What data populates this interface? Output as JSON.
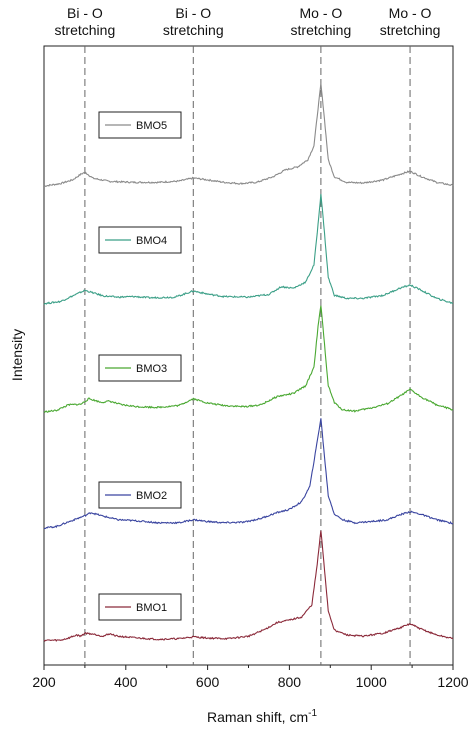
{
  "chart_data": {
    "type": "line",
    "xlabel": "Raman shift, cm",
    "xlabel_superscript": "-1",
    "ylabel": "Intensity",
    "xlim": [
      200,
      1200
    ],
    "xticks": [
      "200",
      "400",
      "600",
      "800",
      "1000",
      "1200"
    ],
    "annotations": [
      {
        "line1": "Bi - O",
        "line2": "stretching",
        "x": 300
      },
      {
        "line1": "Bi - O",
        "line2": "stretching",
        "x": 565
      },
      {
        "line1": "Mo - O",
        "line2": "stretching",
        "x": 877
      },
      {
        "line1": "Mo - O",
        "line2": "stretching",
        "x": 1095
      }
    ],
    "reference_lines_x": [
      300,
      565,
      877,
      1095
    ],
    "series": [
      {
        "name": "BMO5",
        "color": "#8a8a8a",
        "baseline": 0.85,
        "scale": 0.095,
        "points": [
          [
            200,
            0.1
          ],
          [
            240,
            0.18
          ],
          [
            270,
            0.3
          ],
          [
            290,
            0.48
          ],
          [
            300,
            0.55
          ],
          [
            320,
            0.35
          ],
          [
            360,
            0.25
          ],
          [
            420,
            0.22
          ],
          [
            480,
            0.22
          ],
          [
            530,
            0.26
          ],
          [
            565,
            0.36
          ],
          [
            600,
            0.3
          ],
          [
            640,
            0.22
          ],
          [
            680,
            0.18
          ],
          [
            720,
            0.22
          ],
          [
            760,
            0.4
          ],
          [
            790,
            0.62
          ],
          [
            820,
            0.72
          ],
          [
            845,
            0.95
          ],
          [
            860,
            1.4
          ],
          [
            870,
            2.6
          ],
          [
            877,
            3.4
          ],
          [
            884,
            2.5
          ],
          [
            895,
            0.95
          ],
          [
            910,
            0.4
          ],
          [
            940,
            0.22
          ],
          [
            980,
            0.2
          ],
          [
            1030,
            0.3
          ],
          [
            1070,
            0.48
          ],
          [
            1095,
            0.58
          ],
          [
            1120,
            0.42
          ],
          [
            1160,
            0.22
          ],
          [
            1200,
            0.12
          ]
        ]
      },
      {
        "name": "BMO4",
        "color": "#3b9f87",
        "baseline": 2.35,
        "scale": 0.095,
        "points": [
          [
            200,
            0.05
          ],
          [
            240,
            0.12
          ],
          [
            270,
            0.3
          ],
          [
            290,
            0.42
          ],
          [
            300,
            0.48
          ],
          [
            320,
            0.4
          ],
          [
            345,
            0.3
          ],
          [
            380,
            0.26
          ],
          [
            420,
            0.28
          ],
          [
            460,
            0.24
          ],
          [
            520,
            0.26
          ],
          [
            565,
            0.46
          ],
          [
            600,
            0.36
          ],
          [
            640,
            0.28
          ],
          [
            700,
            0.26
          ],
          [
            750,
            0.35
          ],
          [
            780,
            0.6
          ],
          [
            810,
            0.55
          ],
          [
            840,
            0.75
          ],
          [
            860,
            1.3
          ],
          [
            870,
            2.6
          ],
          [
            877,
            3.6
          ],
          [
            884,
            2.6
          ],
          [
            895,
            0.9
          ],
          [
            910,
            0.32
          ],
          [
            940,
            0.22
          ],
          [
            980,
            0.22
          ],
          [
            1030,
            0.32
          ],
          [
            1070,
            0.55
          ],
          [
            1095,
            0.65
          ],
          [
            1120,
            0.5
          ],
          [
            1160,
            0.22
          ],
          [
            1200,
            0.06
          ]
        ]
      },
      {
        "name": "BMO3",
        "color": "#4aa832",
        "baseline": 3.75,
        "scale": 0.095,
        "points": [
          [
            200,
            0.05
          ],
          [
            230,
            0.1
          ],
          [
            260,
            0.28
          ],
          [
            290,
            0.3
          ],
          [
            310,
            0.48
          ],
          [
            340,
            0.36
          ],
          [
            360,
            0.4
          ],
          [
            390,
            0.28
          ],
          [
            430,
            0.22
          ],
          [
            480,
            0.2
          ],
          [
            530,
            0.26
          ],
          [
            565,
            0.48
          ],
          [
            600,
            0.34
          ],
          [
            640,
            0.26
          ],
          [
            690,
            0.22
          ],
          [
            730,
            0.28
          ],
          [
            770,
            0.55
          ],
          [
            810,
            0.65
          ],
          [
            840,
            0.9
          ],
          [
            860,
            1.5
          ],
          [
            870,
            2.8
          ],
          [
            877,
            3.5
          ],
          [
            884,
            2.5
          ],
          [
            895,
            0.9
          ],
          [
            910,
            0.35
          ],
          [
            930,
            0.12
          ],
          [
            960,
            0.08
          ],
          [
            1000,
            0.18
          ],
          [
            1040,
            0.32
          ],
          [
            1075,
            0.6
          ],
          [
            1095,
            0.78
          ],
          [
            1120,
            0.55
          ],
          [
            1160,
            0.28
          ],
          [
            1200,
            0.12
          ]
        ]
      },
      {
        "name": "BMO2",
        "color": "#3a45a0",
        "baseline": 5.25,
        "scale": 0.095,
        "points": [
          [
            200,
            0.05
          ],
          [
            230,
            0.1
          ],
          [
            270,
            0.3
          ],
          [
            300,
            0.45
          ],
          [
            315,
            0.55
          ],
          [
            340,
            0.45
          ],
          [
            380,
            0.32
          ],
          [
            430,
            0.28
          ],
          [
            480,
            0.22
          ],
          [
            530,
            0.22
          ],
          [
            565,
            0.32
          ],
          [
            600,
            0.26
          ],
          [
            640,
            0.22
          ],
          [
            690,
            0.24
          ],
          [
            730,
            0.36
          ],
          [
            770,
            0.55
          ],
          [
            800,
            0.65
          ],
          [
            830,
            0.9
          ],
          [
            850,
            1.4
          ],
          [
            865,
            2.6
          ],
          [
            877,
            3.6
          ],
          [
            884,
            2.6
          ],
          [
            895,
            1.1
          ],
          [
            910,
            0.5
          ],
          [
            930,
            0.32
          ],
          [
            960,
            0.22
          ],
          [
            1000,
            0.26
          ],
          [
            1040,
            0.32
          ],
          [
            1075,
            0.5
          ],
          [
            1095,
            0.58
          ],
          [
            1120,
            0.5
          ],
          [
            1160,
            0.32
          ],
          [
            1200,
            0.2
          ]
        ]
      },
      {
        "name": "BMO1",
        "color": "#8b2a3a",
        "baseline": 6.7,
        "scale": 0.095,
        "points": [
          [
            200,
            0.05
          ],
          [
            240,
            0.05
          ],
          [
            260,
            0.12
          ],
          [
            280,
            0.22
          ],
          [
            290,
            0.18
          ],
          [
            300,
            0.28
          ],
          [
            320,
            0.25
          ],
          [
            345,
            0.18
          ],
          [
            360,
            0.26
          ],
          [
            380,
            0.18
          ],
          [
            430,
            0.12
          ],
          [
            480,
            0.08
          ],
          [
            530,
            0.1
          ],
          [
            565,
            0.16
          ],
          [
            600,
            0.12
          ],
          [
            650,
            0.1
          ],
          [
            700,
            0.18
          ],
          [
            740,
            0.4
          ],
          [
            770,
            0.62
          ],
          [
            800,
            0.7
          ],
          [
            830,
            0.8
          ],
          [
            855,
            1.2
          ],
          [
            868,
            2.5
          ],
          [
            877,
            3.6
          ],
          [
            884,
            2.6
          ],
          [
            895,
            1.0
          ],
          [
            910,
            0.38
          ],
          [
            940,
            0.22
          ],
          [
            980,
            0.18
          ],
          [
            1030,
            0.28
          ],
          [
            1070,
            0.45
          ],
          [
            1095,
            0.58
          ],
          [
            1120,
            0.42
          ],
          [
            1160,
            0.22
          ],
          [
            1200,
            0.1
          ]
        ]
      }
    ]
  }
}
